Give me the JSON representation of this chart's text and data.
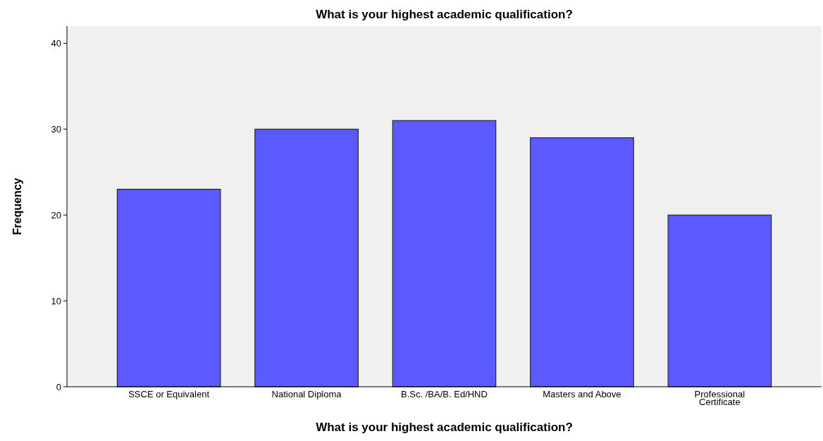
{
  "chart_data": {
    "type": "bar",
    "title": "What is your highest academic qualification?",
    "xlabel": "What is your highest academic qualification?",
    "ylabel": "Frequency",
    "categories": [
      "SSCE or Equivalent",
      "National Diploma",
      "B.Sc. /BA/B. Ed/HND",
      "Masters and Above",
      "Professional Certificate"
    ],
    "values": [
      23,
      30,
      31,
      29,
      20
    ],
    "color": "#5a5aff",
    "ylim": [
      0,
      42
    ],
    "yticks": [
      0,
      10,
      20,
      30,
      40
    ],
    "grid": false
  }
}
